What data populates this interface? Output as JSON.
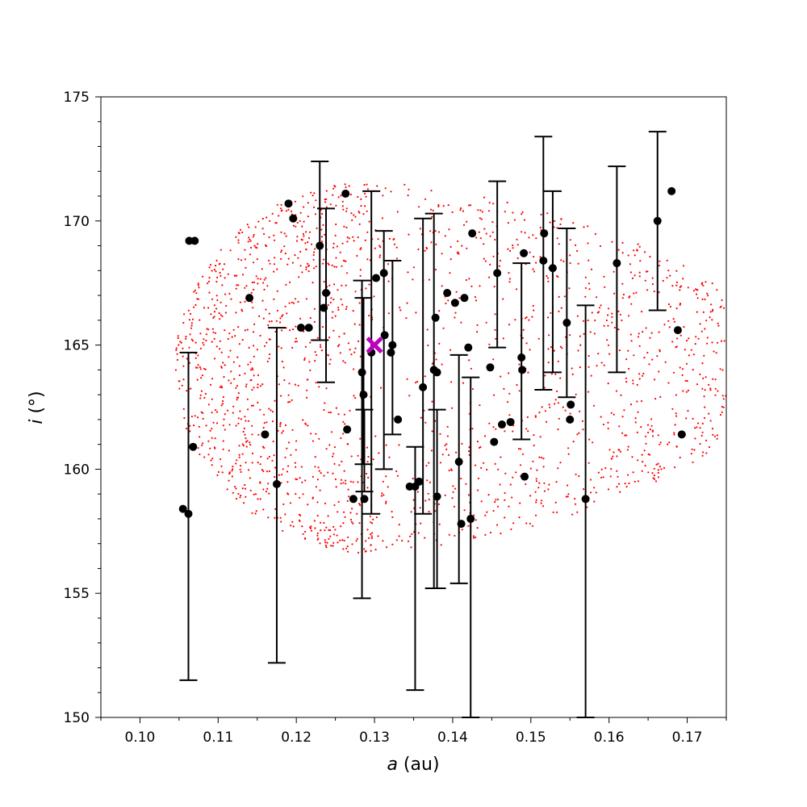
{
  "chart_data": {
    "type": "scatter",
    "title": "",
    "xlabel_var": "a",
    "xlabel_unit": " (au)",
    "ylabel_var": "i",
    "ylabel_unit": " (°)",
    "xlim": [
      0.095,
      0.175
    ],
    "ylim": [
      150,
      175
    ],
    "x_ticks": [
      "0.10",
      "0.11",
      "0.12",
      "0.13",
      "0.14",
      "0.15",
      "0.16",
      "0.17"
    ],
    "y_ticks": [
      "150",
      "155",
      "160",
      "165",
      "170",
      "175"
    ],
    "grid": false,
    "cloud": {
      "description": "red point distribution region",
      "color": "#ff0000",
      "center_a": 0.13,
      "center_i": 164.1,
      "a_min": 0.1045,
      "i_min": 156.6,
      "i_max": 171.6
    },
    "marker": {
      "name": "reference point",
      "a": 0.13,
      "i": 165.0,
      "color": "#bf00bf"
    },
    "points": [
      {
        "a": 0.1055,
        "i": 158.4
      },
      {
        "a": 0.1062,
        "i": 158.2,
        "err": [
          151.5,
          164.7
        ]
      },
      {
        "a": 0.1063,
        "i": 169.2
      },
      {
        "a": 0.107,
        "i": 169.2
      },
      {
        "a": 0.1068,
        "i": 160.9
      },
      {
        "a": 0.114,
        "i": 166.9
      },
      {
        "a": 0.116,
        "i": 161.4
      },
      {
        "a": 0.1175,
        "i": 159.4,
        "err": [
          152.2,
          165.7
        ]
      },
      {
        "a": 0.119,
        "i": 170.7
      },
      {
        "a": 0.1196,
        "i": 170.1
      },
      {
        "a": 0.1206,
        "i": 165.7
      },
      {
        "a": 0.1216,
        "i": 165.7
      },
      {
        "a": 0.123,
        "i": 169.0,
        "err": [
          165.2,
          172.4
        ]
      },
      {
        "a": 0.1235,
        "i": 166.5
      },
      {
        "a": 0.1238,
        "i": 167.1,
        "err": [
          163.5,
          170.5
        ]
      },
      {
        "a": 0.1263,
        "i": 171.1
      },
      {
        "a": 0.1265,
        "i": 161.6
      },
      {
        "a": 0.1273,
        "i": 158.8
      },
      {
        "a": 0.1284,
        "i": 163.9,
        "err": [
          154.8,
          167.6
        ]
      },
      {
        "a": 0.1286,
        "i": 163.0,
        "err": [
          160.2,
          166.9
        ]
      },
      {
        "a": 0.1287,
        "i": 158.8,
        "err": [
          159.1,
          162.4
        ]
      },
      {
        "a": 0.1296,
        "i": 164.7,
        "err": [
          158.2,
          171.2
        ]
      },
      {
        "a": 0.1302,
        "i": 167.7
      },
      {
        "a": 0.1312,
        "i": 167.9,
        "err": [
          160.0,
          169.6
        ]
      },
      {
        "a": 0.1313,
        "i": 165.4
      },
      {
        "a": 0.1321,
        "i": 164.7
      },
      {
        "a": 0.1323,
        "i": 165.0,
        "err": [
          161.4,
          168.4
        ]
      },
      {
        "a": 0.133,
        "i": 162.0
      },
      {
        "a": 0.1345,
        "i": 159.3
      },
      {
        "a": 0.1352,
        "i": 159.3,
        "err": [
          151.1,
          160.9
        ]
      },
      {
        "a": 0.1357,
        "i": 159.5
      },
      {
        "a": 0.1362,
        "i": 163.3,
        "err": [
          158.2,
          170.1
        ]
      },
      {
        "a": 0.1376,
        "i": 164.0,
        "err": [
          155.2,
          170.3
        ]
      },
      {
        "a": 0.1378,
        "i": 166.1
      },
      {
        "a": 0.138,
        "i": 163.9
      },
      {
        "a": 0.138,
        "i": 158.9,
        "err": [
          155.2,
          162.4
        ]
      },
      {
        "a": 0.1393,
        "i": 167.1
      },
      {
        "a": 0.1403,
        "i": 166.7
      },
      {
        "a": 0.1408,
        "i": 160.3,
        "err": [
          155.4,
          164.6
        ]
      },
      {
        "a": 0.1411,
        "i": 157.8
      },
      {
        "a": 0.1415,
        "i": 166.9
      },
      {
        "a": 0.142,
        "i": 164.9
      },
      {
        "a": 0.1423,
        "i": 158.0,
        "err": [
          150.0,
          163.7
        ]
      },
      {
        "a": 0.1425,
        "i": 169.5
      },
      {
        "a": 0.1448,
        "i": 164.1
      },
      {
        "a": 0.1453,
        "i": 161.1
      },
      {
        "a": 0.1457,
        "i": 167.9,
        "err": [
          164.9,
          171.6
        ]
      },
      {
        "a": 0.1463,
        "i": 161.8
      },
      {
        "a": 0.1474,
        "i": 161.9
      },
      {
        "a": 0.1488,
        "i": 164.5,
        "err": [
          161.2,
          168.3
        ]
      },
      {
        "a": 0.1489,
        "i": 164.0
      },
      {
        "a": 0.1491,
        "i": 168.7
      },
      {
        "a": 0.1492,
        "i": 159.7
      },
      {
        "a": 0.1516,
        "i": 168.4,
        "err": [
          163.2,
          173.4
        ]
      },
      {
        "a": 0.1517,
        "i": 169.5
      },
      {
        "a": 0.1528,
        "i": 168.1,
        "err": [
          163.9,
          171.2
        ]
      },
      {
        "a": 0.1546,
        "i": 165.9,
        "err": [
          162.9,
          169.7
        ]
      },
      {
        "a": 0.155,
        "i": 162.0
      },
      {
        "a": 0.1551,
        "i": 162.6
      },
      {
        "a": 0.157,
        "i": 158.8,
        "err": [
          150.0,
          166.6
        ]
      },
      {
        "a": 0.161,
        "i": 168.3,
        "err": [
          163.9,
          172.2
        ]
      },
      {
        "a": 0.1662,
        "i": 170.0,
        "err": [
          166.4,
          173.6
        ]
      },
      {
        "a": 0.168,
        "i": 171.2
      },
      {
        "a": 0.1688,
        "i": 165.6
      },
      {
        "a": 0.1693,
        "i": 161.4
      }
    ]
  }
}
